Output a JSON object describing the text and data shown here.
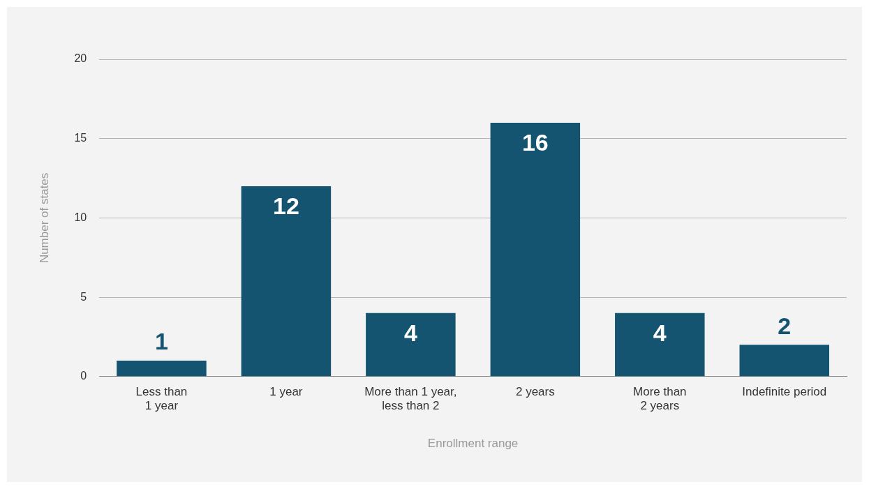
{
  "chart_data": {
    "type": "bar",
    "xlabel": "Enrollment range",
    "ylabel": "Number of states",
    "categories": [
      "Less than 1 year",
      "1 year",
      "More than 1 year, less than 2",
      "2 years",
      "More than 2 years",
      "Indefinite period"
    ],
    "values": [
      1,
      12,
      4,
      16,
      4,
      2
    ],
    "color": "#155470",
    "ylim": [
      0,
      20
    ],
    "yticks": [
      0,
      5,
      10,
      15,
      20
    ],
    "grid": "y",
    "data_labels": true,
    "legend": false
  }
}
